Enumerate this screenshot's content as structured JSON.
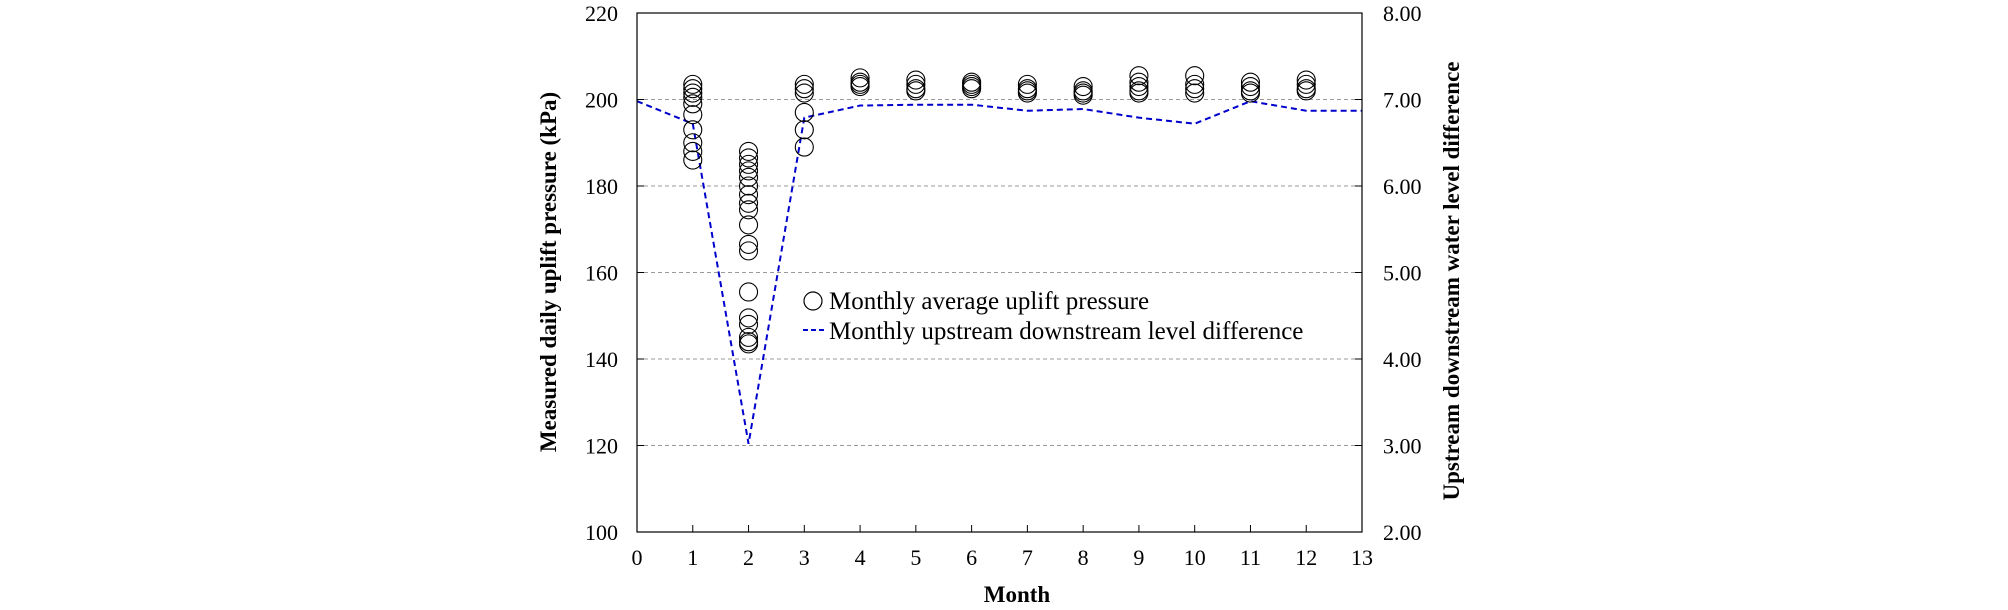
{
  "chart_data": {
    "type": "scatter",
    "xlabel": "Month",
    "ylabel_left": "Measured daily uplift pressure (kPa)",
    "ylabel_right": "Upstream downstream water level difference",
    "xlim": [
      0,
      13
    ],
    "ylim_left": [
      100,
      220
    ],
    "ylim_right": [
      2.0,
      8.0
    ],
    "x_ticks": [
      "0",
      "1",
      "2",
      "3",
      "4",
      "5",
      "6",
      "7",
      "8",
      "9",
      "10",
      "11",
      "12",
      "13"
    ],
    "y_left_ticks": [
      "100",
      "120",
      "140",
      "160",
      "180",
      "200",
      "220"
    ],
    "y_right_ticks": [
      "2.00",
      "3.00",
      "4.00",
      "5.00",
      "6.00",
      "7.00",
      "8.00"
    ],
    "grid": "horizontal dashed",
    "legend_position": "center",
    "series": [
      {
        "name": "Monthly average uplift pressure",
        "marker": "open-circle",
        "axis": "left",
        "color": "#000000",
        "points": [
          {
            "x": 1,
            "y": 203.5
          },
          {
            "x": 1,
            "y": 202.5
          },
          {
            "x": 1,
            "y": 201.5
          },
          {
            "x": 1,
            "y": 200.5
          },
          {
            "x": 1,
            "y": 199
          },
          {
            "x": 1,
            "y": 196.5
          },
          {
            "x": 1,
            "y": 193
          },
          {
            "x": 1,
            "y": 190
          },
          {
            "x": 1,
            "y": 188
          },
          {
            "x": 1,
            "y": 186
          },
          {
            "x": 2,
            "y": 188
          },
          {
            "x": 2,
            "y": 186.5
          },
          {
            "x": 2,
            "y": 185
          },
          {
            "x": 2,
            "y": 183.5
          },
          {
            "x": 2,
            "y": 182
          },
          {
            "x": 2,
            "y": 180
          },
          {
            "x": 2,
            "y": 178
          },
          {
            "x": 2,
            "y": 176
          },
          {
            "x": 2,
            "y": 174.5
          },
          {
            "x": 2,
            "y": 171
          },
          {
            "x": 2,
            "y": 166.5
          },
          {
            "x": 2,
            "y": 165
          },
          {
            "x": 2,
            "y": 155.5
          },
          {
            "x": 2,
            "y": 149.5
          },
          {
            "x": 2,
            "y": 148
          },
          {
            "x": 2,
            "y": 145
          },
          {
            "x": 2,
            "y": 144
          },
          {
            "x": 2,
            "y": 143.5
          },
          {
            "x": 3,
            "y": 203.5
          },
          {
            "x": 3,
            "y": 202.5
          },
          {
            "x": 3,
            "y": 201.5
          },
          {
            "x": 3,
            "y": 197
          },
          {
            "x": 3,
            "y": 193
          },
          {
            "x": 3,
            "y": 189
          },
          {
            "x": 4,
            "y": 205
          },
          {
            "x": 4,
            "y": 204
          },
          {
            "x": 4,
            "y": 203.5
          },
          {
            "x": 4,
            "y": 203
          },
          {
            "x": 5,
            "y": 204.5
          },
          {
            "x": 5,
            "y": 203.5
          },
          {
            "x": 5,
            "y": 202.5
          },
          {
            "x": 5,
            "y": 202
          },
          {
            "x": 6,
            "y": 204
          },
          {
            "x": 6,
            "y": 203.5
          },
          {
            "x": 6,
            "y": 203
          },
          {
            "x": 6,
            "y": 202.5
          },
          {
            "x": 7,
            "y": 203.5
          },
          {
            "x": 7,
            "y": 202.5
          },
          {
            "x": 7,
            "y": 202
          },
          {
            "x": 7,
            "y": 201.5
          },
          {
            "x": 8,
            "y": 203
          },
          {
            "x": 8,
            "y": 202
          },
          {
            "x": 8,
            "y": 201.5
          },
          {
            "x": 8,
            "y": 201
          },
          {
            "x": 9,
            "y": 205.5
          },
          {
            "x": 9,
            "y": 204
          },
          {
            "x": 9,
            "y": 203
          },
          {
            "x": 9,
            "y": 202
          },
          {
            "x": 9,
            "y": 201.5
          },
          {
            "x": 10,
            "y": 205.5
          },
          {
            "x": 10,
            "y": 203.5
          },
          {
            "x": 10,
            "y": 202.5
          },
          {
            "x": 10,
            "y": 201.5
          },
          {
            "x": 11,
            "y": 204
          },
          {
            "x": 11,
            "y": 203
          },
          {
            "x": 11,
            "y": 202
          },
          {
            "x": 11,
            "y": 201.5
          },
          {
            "x": 12,
            "y": 204.5
          },
          {
            "x": 12,
            "y": 203.5
          },
          {
            "x": 12,
            "y": 202.5
          },
          {
            "x": 12,
            "y": 202
          }
        ]
      },
      {
        "name": "Monthly upstream downstream level difference",
        "line_style": "dashed",
        "axis": "right",
        "color": "#0000CC",
        "x": [
          0,
          1,
          2,
          3,
          4,
          5,
          6,
          7,
          8,
          9,
          10,
          11,
          12,
          13
        ],
        "values": [
          6.98,
          6.72,
          3.02,
          6.79,
          6.93,
          6.94,
          6.94,
          6.87,
          6.89,
          6.79,
          6.72,
          6.98,
          6.87,
          6.87
        ]
      }
    ]
  }
}
